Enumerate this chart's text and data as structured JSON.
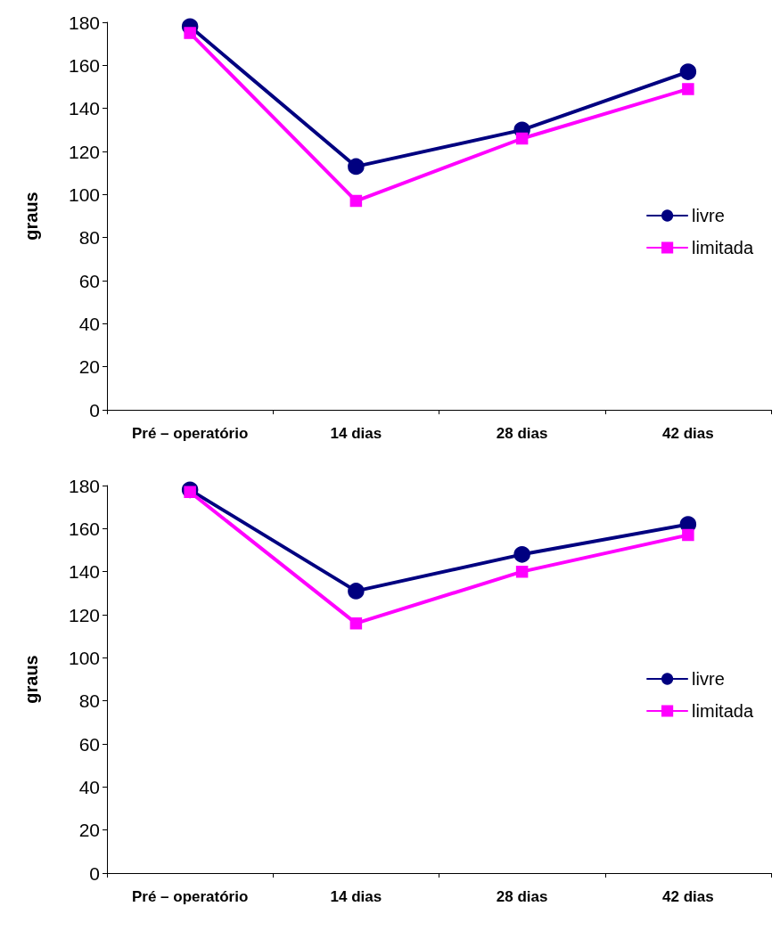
{
  "chart_data": [
    {
      "type": "line",
      "ylabel": "graus",
      "categories": [
        "Pré – operatório",
        "14 dias",
        "28 dias",
        "42 dias"
      ],
      "ylim": [
        0,
        180
      ],
      "yticks": [
        0,
        20,
        40,
        60,
        80,
        100,
        120,
        140,
        160,
        180
      ],
      "grid": false,
      "legend": "right",
      "line_style": "solid",
      "series": [
        {
          "name": "livre",
          "color": "#000080",
          "marker": "circle",
          "values": [
            178,
            113,
            130,
            157
          ]
        },
        {
          "name": "limitada",
          "color": "#ff00ff",
          "marker": "square",
          "values": [
            175,
            97,
            126,
            149
          ]
        }
      ]
    },
    {
      "type": "line",
      "ylabel": "graus",
      "categories": [
        "Pré – operatório",
        "14 dias",
        "28 dias",
        "42 dias"
      ],
      "ylim": [
        0,
        180
      ],
      "yticks": [
        0,
        20,
        40,
        60,
        80,
        100,
        120,
        140,
        160,
        180
      ],
      "grid": false,
      "legend": "right",
      "line_style": "solid",
      "series": [
        {
          "name": "livre",
          "color": "#000080",
          "marker": "circle",
          "values": [
            178,
            131,
            148,
            162
          ]
        },
        {
          "name": "limitada",
          "color": "#ff00ff",
          "marker": "square",
          "values": [
            177,
            116,
            140,
            157
          ]
        }
      ]
    }
  ]
}
